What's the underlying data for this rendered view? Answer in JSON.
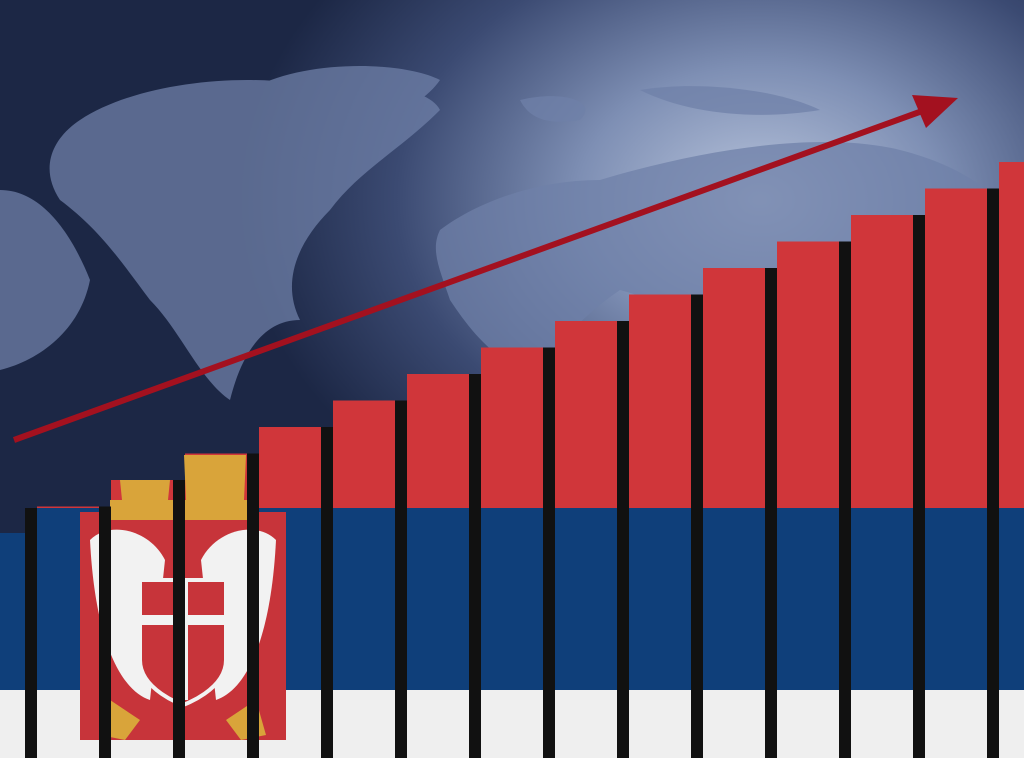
{
  "colors": {
    "flag_red": "#d0363a",
    "flag_blue": "#0f3f7a",
    "flag_white": "#efefef",
    "arrow": "#a3111f",
    "background": "#2a3658",
    "map": "#6f80a8"
  },
  "chart_data": {
    "type": "bar",
    "trend": "rising",
    "values": [
      1,
      2,
      3,
      4,
      5,
      6,
      7,
      8,
      9,
      10,
      11,
      12,
      13,
      14,
      15
    ]
  }
}
